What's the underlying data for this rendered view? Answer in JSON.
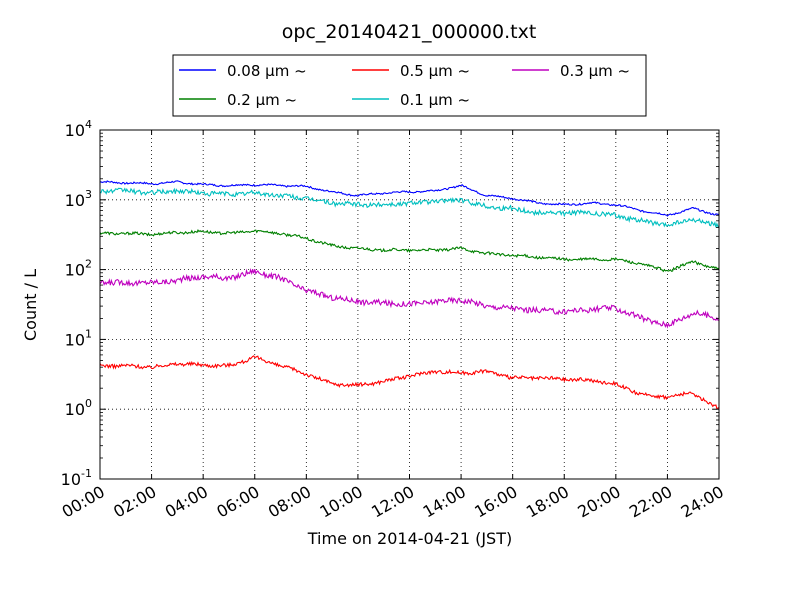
{
  "chart_data": {
    "type": "line",
    "title": "opc_20140421_000000.txt",
    "xlabel": "Time on 2014-04-21 (JST)",
    "ylabel": "Count / L",
    "yscale": "log",
    "ylim": [
      0.1,
      10000
    ],
    "xlim": [
      "00:00",
      "24:00"
    ],
    "grid": true,
    "legend_position": "top",
    "x_ticks": [
      "00:00",
      "02:00",
      "04:00",
      "06:00",
      "08:00",
      "10:00",
      "12:00",
      "14:00",
      "16:00",
      "18:00",
      "20:00",
      "22:00",
      "24:00"
    ],
    "y_ticks": [
      {
        "base": "10",
        "exp": "-1",
        "value": 0.1
      },
      {
        "base": "10",
        "exp": "0",
        "value": 1
      },
      {
        "base": "10",
        "exp": "1",
        "value": 10
      },
      {
        "base": "10",
        "exp": "2",
        "value": 100
      },
      {
        "base": "10",
        "exp": "3",
        "value": 1000
      },
      {
        "base": "10",
        "exp": "4",
        "value": 10000
      }
    ],
    "x_hours": [
      0,
      1,
      2,
      3,
      4,
      5,
      6,
      7,
      8,
      9,
      10,
      11,
      12,
      13,
      14,
      15,
      16,
      17,
      18,
      19,
      20,
      21,
      22,
      23,
      24
    ],
    "series": [
      {
        "name": "0.08 μm ~",
        "color": "#0000ff",
        "values": [
          1800,
          1750,
          1700,
          1800,
          1650,
          1600,
          1650,
          1600,
          1550,
          1300,
          1150,
          1250,
          1300,
          1350,
          1600,
          1150,
          1050,
          900,
          850,
          900,
          850,
          700,
          600,
          750,
          600
        ]
      },
      {
        "name": "0.2 μm ~",
        "color": "#008000",
        "values": [
          330,
          330,
          320,
          340,
          350,
          330,
          360,
          330,
          280,
          220,
          200,
          190,
          190,
          190,
          200,
          170,
          160,
          150,
          140,
          140,
          140,
          120,
          95,
          130,
          100
        ]
      },
      {
        "name": "0.5 μm ~",
        "color": "#ff0000",
        "values": [
          4.2,
          4.2,
          4.0,
          4.5,
          4.3,
          4.2,
          5.5,
          4.2,
          3.2,
          2.3,
          2.2,
          2.5,
          3.0,
          3.5,
          3.3,
          3.5,
          2.8,
          2.8,
          2.7,
          2.6,
          2.3,
          1.6,
          1.5,
          1.7,
          1.0
        ]
      },
      {
        "name": "0.1 μm ~",
        "color": "#00bfbf",
        "values": [
          1350,
          1350,
          1250,
          1350,
          1250,
          1200,
          1250,
          1150,
          1050,
          900,
          850,
          850,
          900,
          950,
          1000,
          800,
          750,
          650,
          650,
          650,
          600,
          500,
          430,
          520,
          420
        ]
      },
      {
        "name": "0.3 μm ~",
        "color": "#bf00bf",
        "values": [
          65,
          65,
          65,
          70,
          80,
          75,
          95,
          75,
          50,
          40,
          35,
          33,
          32,
          35,
          37,
          30,
          28,
          26,
          25,
          27,
          28,
          20,
          16,
          24,
          20
        ]
      }
    ]
  }
}
